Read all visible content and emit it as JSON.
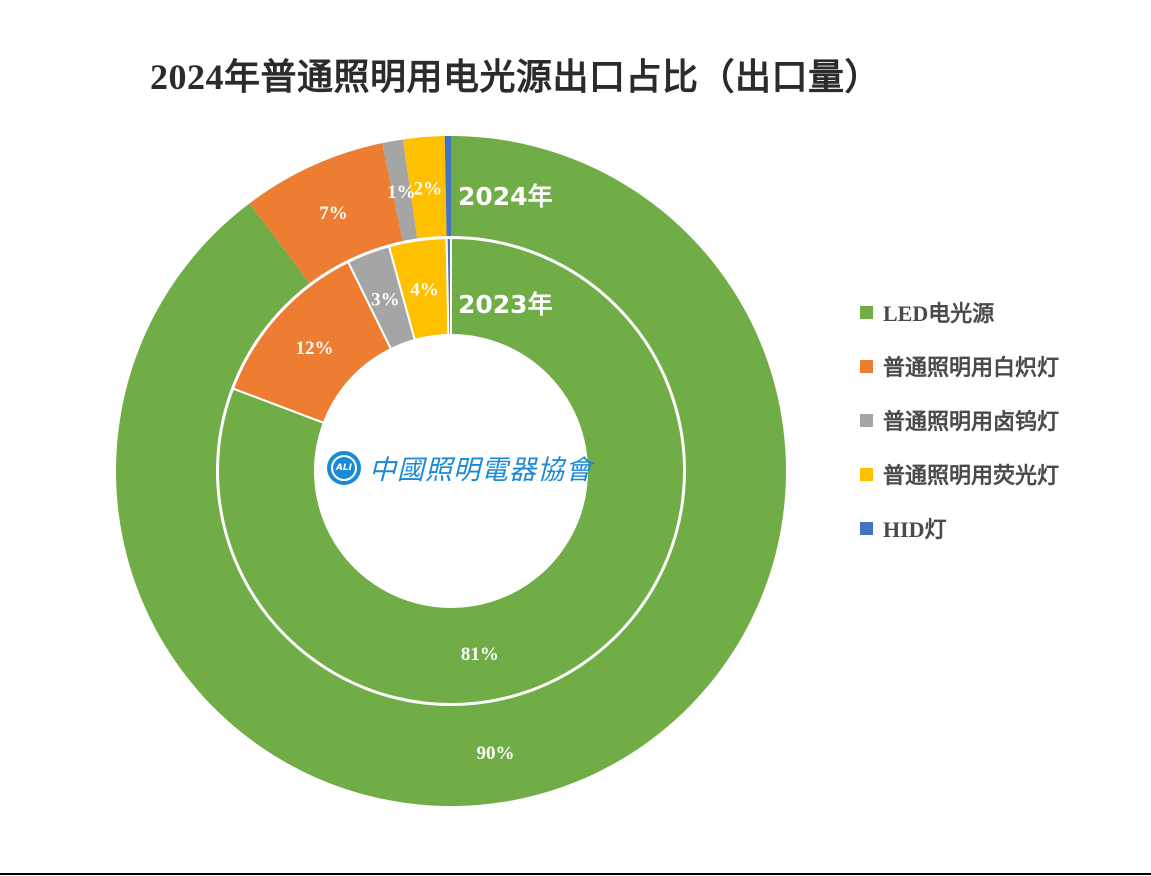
{
  "chart_data": {
    "type": "pie",
    "subtype": "doughnut-nested",
    "title": "2024年普通照明用电光源出口占比（出口量）",
    "legend_position": "right",
    "categories": [
      "LED电光源",
      "普通照明用白炽灯",
      "普通照明用卤钨灯",
      "普通照明用荧光灯",
      "HID灯"
    ],
    "colors": [
      "#70AD47",
      "#ED7D31",
      "#A5A5A5",
      "#FFC000",
      "#4472C4"
    ],
    "series": [
      {
        "name": "2024年",
        "ring": "outer",
        "values": [
          90,
          7,
          1,
          2,
          0.3
        ],
        "labels": [
          "90%",
          "7%",
          "1%",
          "2%",
          ""
        ]
      },
      {
        "name": "2023年",
        "ring": "inner",
        "values": [
          81,
          12,
          3,
          4,
          0.3
        ],
        "labels": [
          "81%",
          "12%",
          "3%",
          "4%",
          ""
        ]
      }
    ]
  },
  "header": {
    "title": "2024年普通照明用电光源出口占比（出口量）"
  },
  "rings": {
    "outer_label": "2024年",
    "inner_label": "2023年"
  },
  "legend": {
    "items": [
      {
        "label": "LED电光源",
        "color": "#70AD47"
      },
      {
        "label": "普通照明用白炽灯",
        "color": "#ED7D31"
      },
      {
        "label": "普通照明用卤钨灯",
        "color": "#A5A5A5"
      },
      {
        "label": "普通照明用荧光灯",
        "color": "#FFC000"
      },
      {
        "label": "HID灯",
        "color": "#4472C4"
      }
    ]
  },
  "logo": {
    "badge": "ALI",
    "text": "中國照明電器協會"
  }
}
